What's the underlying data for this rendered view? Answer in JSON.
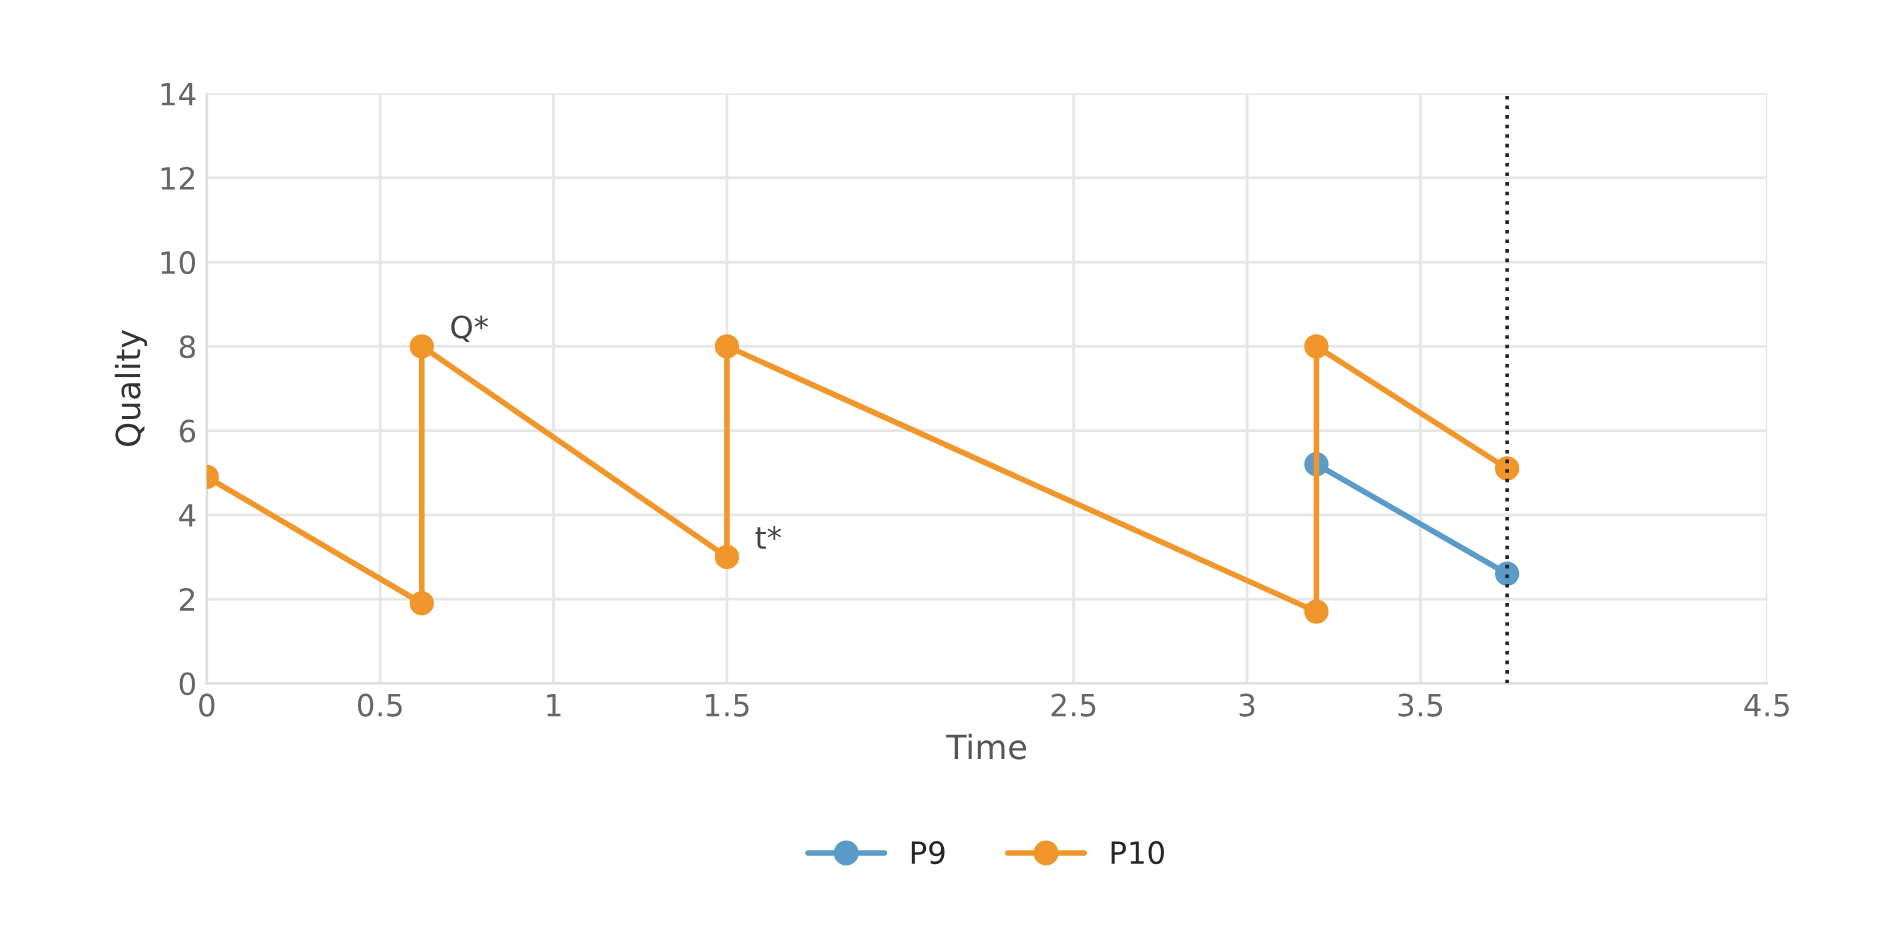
{
  "chart_data": {
    "type": "line",
    "xlabel": "Time",
    "ylabel": "Quality",
    "series": [
      {
        "name": "P9",
        "color": "#5b9bc8",
        "x": [
          3.2,
          3.75
        ],
        "values": [
          5.2,
          2.6
        ]
      },
      {
        "name": "P10",
        "color": "#f0962a",
        "x": [
          0,
          0.62,
          0.62,
          1.5,
          1.5,
          3.2,
          3.2,
          3.75
        ],
        "values": [
          4.9,
          1.9,
          8,
          3.0,
          8,
          1.7,
          8,
          5.1
        ]
      }
    ],
    "annotations": [
      {
        "text": "Q*",
        "x": 0.62,
        "y": 8
      },
      {
        "text": "t*",
        "x": 1.5,
        "y": 3.0
      }
    ],
    "ref_lines": [
      {
        "axis": "x",
        "value": 3.75,
        "color": "#222222",
        "line_style": "dotted"
      }
    ],
    "xlim": [
      0,
      4.5
    ],
    "xticks": [
      0,
      0.5,
      1,
      1.5,
      2.5,
      3,
      3.5,
      4.5
    ],
    "ylim": [
      0,
      14
    ],
    "yticks": [
      0,
      2,
      4,
      6,
      8,
      10,
      12,
      14
    ],
    "grid": true,
    "legend": "bottom",
    "marker": "circle",
    "line_style": "solid"
  }
}
